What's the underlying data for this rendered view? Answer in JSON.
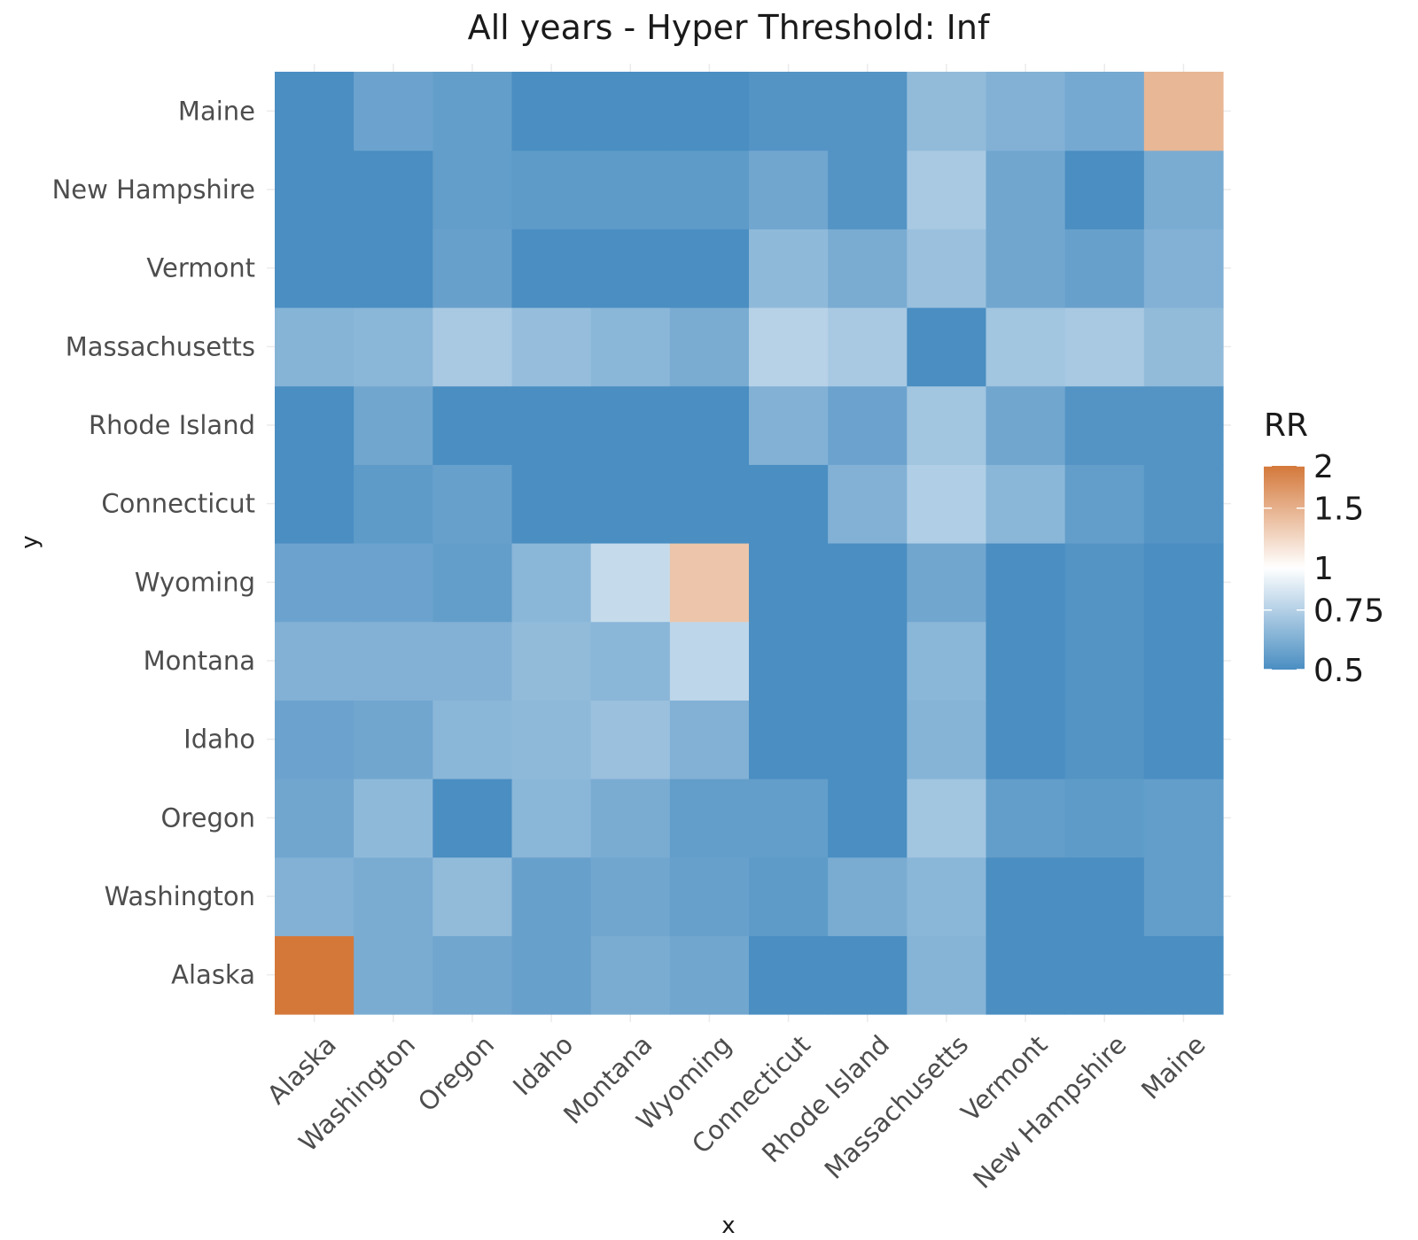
{
  "chart_data": {
    "type": "heatmap",
    "title": "All years - Hyper Threshold: Inf",
    "xlabel": "x",
    "ylabel": "y",
    "x_categories": [
      "Alaska",
      "Washington",
      "Oregon",
      "Idaho",
      "Montana",
      "Wyoming",
      "Connecticut",
      "Rhode Island",
      "Massachusetts",
      "Vermont",
      "New Hampshire",
      "Maine"
    ],
    "y_categories": [
      "Alaska",
      "Washington",
      "Oregon",
      "Idaho",
      "Montana",
      "Wyoming",
      "Connecticut",
      "Rhode Island",
      "Massachusetts",
      "Vermont",
      "New Hampshire",
      "Maine"
    ],
    "values": [
      [
        2.0,
        0.6,
        0.58,
        0.56,
        0.6,
        0.58,
        0.5,
        0.5,
        0.63,
        0.5,
        0.5,
        0.5
      ],
      [
        0.62,
        0.6,
        0.66,
        0.56,
        0.58,
        0.56,
        0.54,
        0.6,
        0.64,
        0.5,
        0.5,
        0.55
      ],
      [
        0.58,
        0.65,
        0.5,
        0.64,
        0.6,
        0.55,
        0.55,
        0.5,
        0.7,
        0.55,
        0.54,
        0.55
      ],
      [
        0.57,
        0.58,
        0.64,
        0.65,
        0.68,
        0.62,
        0.5,
        0.5,
        0.63,
        0.5,
        0.52,
        0.5
      ],
      [
        0.62,
        0.62,
        0.62,
        0.66,
        0.64,
        0.78,
        0.5,
        0.5,
        0.64,
        0.5,
        0.52,
        0.5
      ],
      [
        0.57,
        0.57,
        0.55,
        0.64,
        0.8,
        1.35,
        0.5,
        0.5,
        0.58,
        0.5,
        0.52,
        0.5
      ],
      [
        0.5,
        0.54,
        0.56,
        0.5,
        0.5,
        0.5,
        0.5,
        0.62,
        0.74,
        0.64,
        0.55,
        0.52
      ],
      [
        0.5,
        0.58,
        0.5,
        0.5,
        0.5,
        0.5,
        0.62,
        0.57,
        0.7,
        0.58,
        0.52,
        0.52
      ],
      [
        0.63,
        0.64,
        0.72,
        0.67,
        0.64,
        0.6,
        0.76,
        0.72,
        0.5,
        0.7,
        0.72,
        0.66
      ],
      [
        0.5,
        0.5,
        0.56,
        0.5,
        0.5,
        0.5,
        0.65,
        0.6,
        0.68,
        0.58,
        0.56,
        0.62
      ],
      [
        0.5,
        0.5,
        0.55,
        0.54,
        0.54,
        0.54,
        0.58,
        0.52,
        0.72,
        0.58,
        0.5,
        0.6
      ],
      [
        0.5,
        0.57,
        0.55,
        0.5,
        0.5,
        0.5,
        0.52,
        0.52,
        0.66,
        0.62,
        0.59,
        1.45
      ]
    ],
    "legend": {
      "title": "RR",
      "labels": [
        "2",
        "1.5",
        "1",
        "0.75",
        "0.5"
      ],
      "domain": [
        0.5,
        2
      ],
      "scale": "log",
      "colors": {
        "low": "#4a8ec2",
        "mid": "#ffffff",
        "high": "#d4783a"
      },
      "placement": "right"
    },
    "grid": true,
    "background": "#ffffff"
  }
}
